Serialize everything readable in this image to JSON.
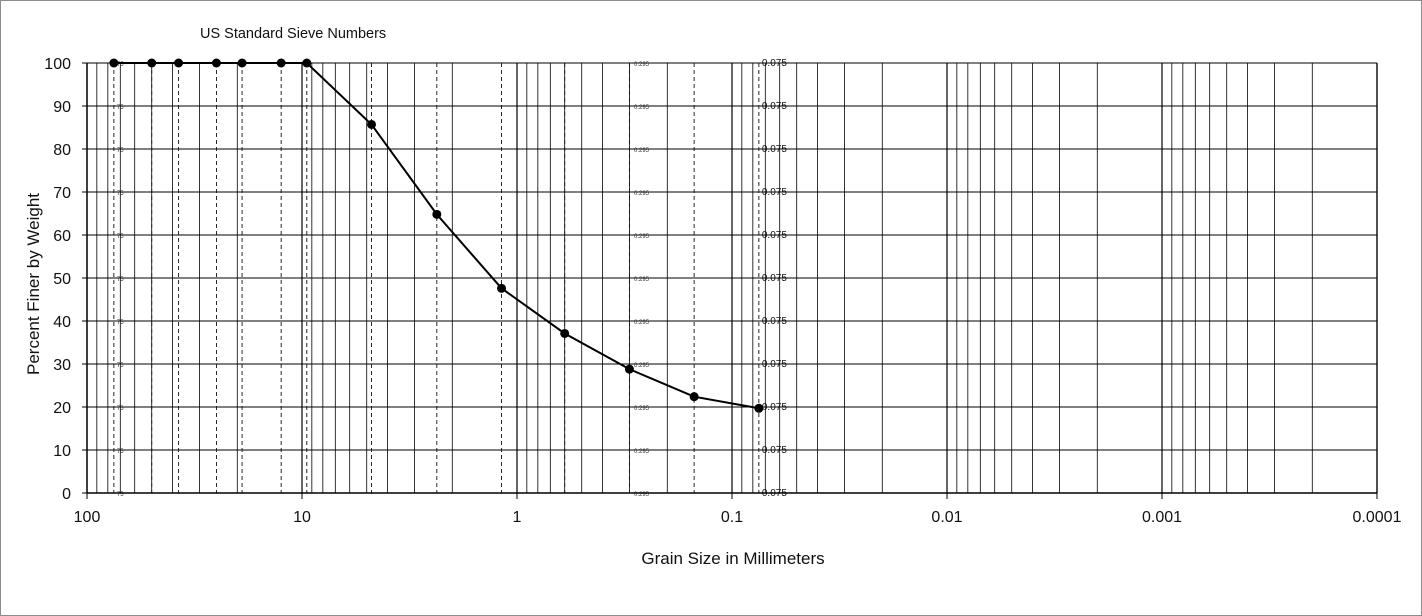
{
  "chart_data": {
    "type": "scatter",
    "title": "US Standard Sieve  Numbers",
    "xlabel": "Grain Size in Millimeters",
    "ylabel": "Percent Finer by Weight",
    "xscale": "log",
    "xaxis": "reversed",
    "xlim": [
      100,
      0.0001
    ],
    "ylim": [
      0,
      100
    ],
    "xticks": [
      100,
      10,
      1,
      0.1,
      0.01,
      0.001,
      0.0001
    ],
    "xtick_labels": [
      "100",
      "10",
      "1",
      "0.1",
      "0.01",
      "0.001",
      "0.0001"
    ],
    "yticks": [
      0,
      10,
      20,
      30,
      40,
      50,
      60,
      70,
      80,
      90,
      100
    ],
    "ytick_labels": [
      "0",
      "10",
      "20",
      "30",
      "40",
      "50",
      "60",
      "70",
      "80",
      "90",
      "100"
    ],
    "grid": true,
    "series": [
      {
        "x": [
          75,
          50,
          37.5,
          25,
          19,
          12.5,
          9.5,
          4.75,
          2.36,
          1.18,
          0.6,
          0.3,
          0.15,
          0.075
        ],
        "y": [
          100,
          100,
          100,
          100,
          100,
          100,
          100,
          85.7,
          64.8,
          47.6,
          37.1,
          28.8,
          22.4,
          19.7
        ]
      }
    ],
    "reference_lines": {
      "x": [
        75,
        0.295,
        0.075
      ],
      "labels": [
        "75",
        "0.295",
        "0.075"
      ]
    },
    "sieve_lines": [
      75,
      50,
      37.5,
      25,
      19,
      12.5,
      9.5,
      4.75,
      2.36,
      1.18,
      0.6,
      0.3,
      0.15,
      0.075
    ],
    "colors": {
      "line": "#000000",
      "grid": "#000000",
      "frame": "#8c8c8c"
    }
  }
}
